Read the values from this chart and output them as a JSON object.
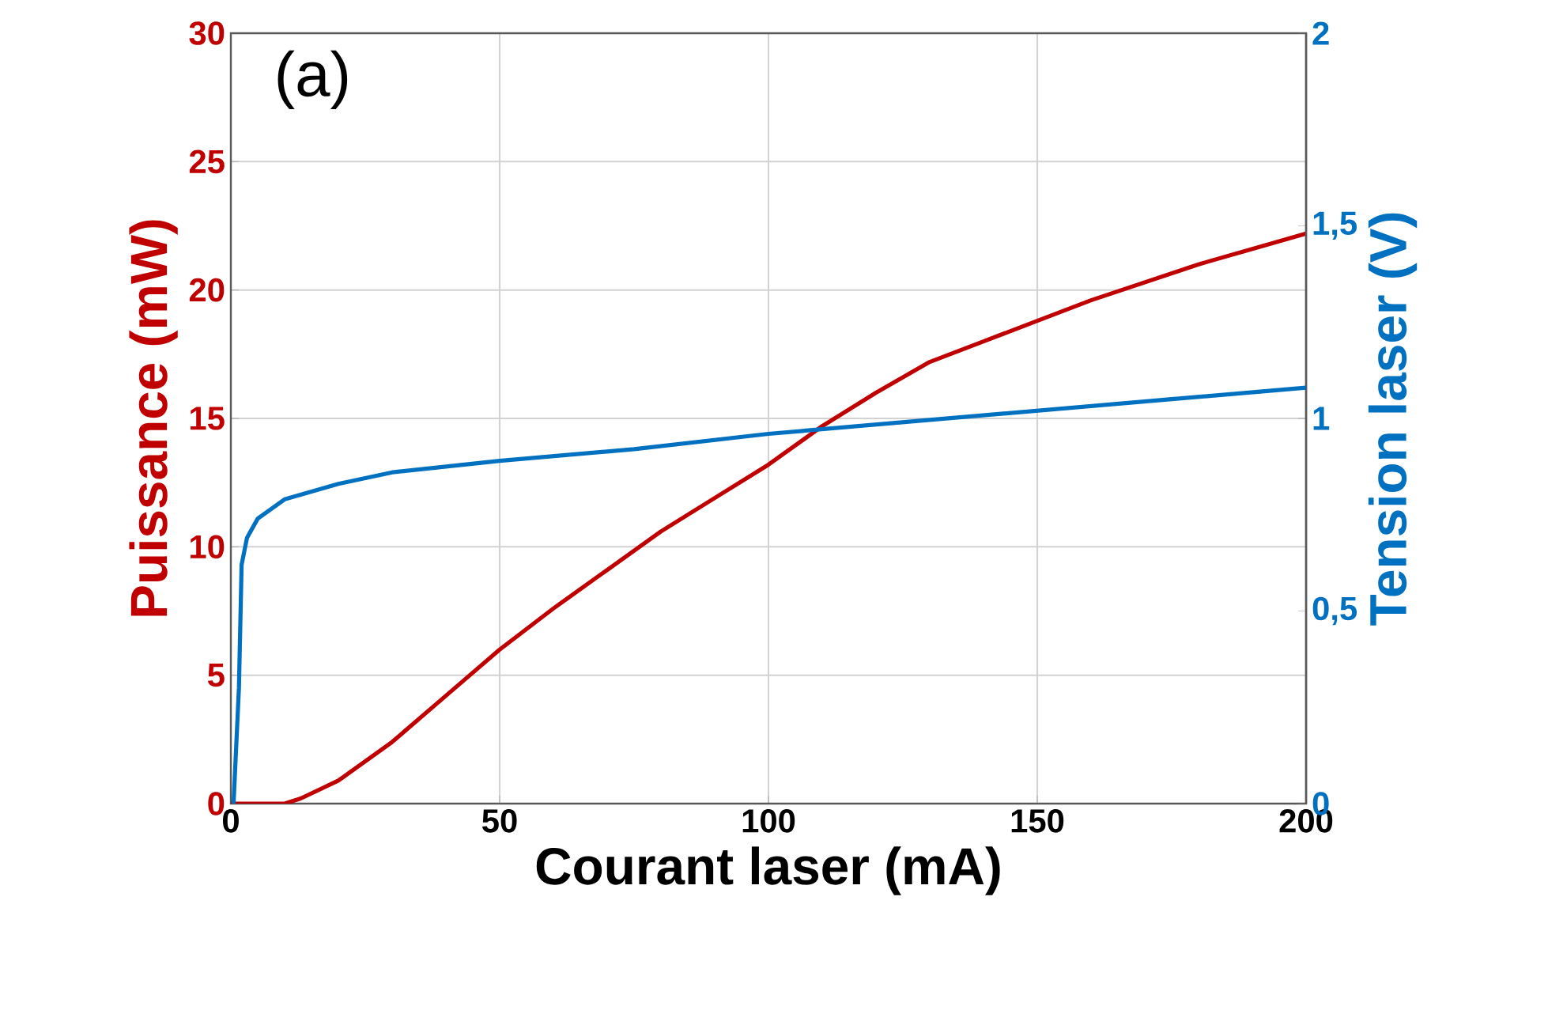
{
  "chart_data": {
    "type": "line",
    "xlabel": "Courant laser (mA)",
    "ylabel": "Puissance (mW)",
    "y2label": "Tension laser (V)",
    "annotations": [
      "(a)"
    ],
    "xlim": [
      0,
      200
    ],
    "xticks": [
      0,
      50,
      100,
      150,
      200
    ],
    "ylim": [
      0,
      30
    ],
    "yticks": [
      0,
      5,
      10,
      15,
      20,
      25,
      30
    ],
    "y2lim": [
      0,
      2
    ],
    "y2ticks": [
      0,
      {
        "value": 0.5,
        "label": "0,5"
      },
      1,
      {
        "value": 1.5,
        "label": "1,5"
      },
      2
    ],
    "grid": true,
    "series": [
      {
        "color": "#c00000",
        "x": [
          0,
          10,
          13,
          20,
          30,
          40,
          50,
          60,
          70,
          80,
          90,
          100,
          110,
          120,
          130,
          140,
          150,
          160,
          170,
          180,
          190,
          200
        ],
        "values": [
          0,
          0,
          0.2,
          0.9,
          2.4,
          4.2,
          6.0,
          7.6,
          9.1,
          10.6,
          11.9,
          13.2,
          14.7,
          16.0,
          17.2,
          18.0,
          18.8,
          19.6,
          20.3,
          21.0,
          21.6,
          22.2
        ]
      },
      {
        "color": "#0070c0",
        "axis": "y2",
        "x": [
          0.5,
          1.5,
          2,
          3,
          5,
          10,
          20,
          30,
          50,
          75,
          100,
          125,
          150,
          175,
          200
        ],
        "values": [
          0,
          0.3,
          0.62,
          0.69,
          0.74,
          0.79,
          0.83,
          0.86,
          0.89,
          0.92,
          0.96,
          0.99,
          1.02,
          1.05,
          1.08
        ]
      }
    ]
  }
}
